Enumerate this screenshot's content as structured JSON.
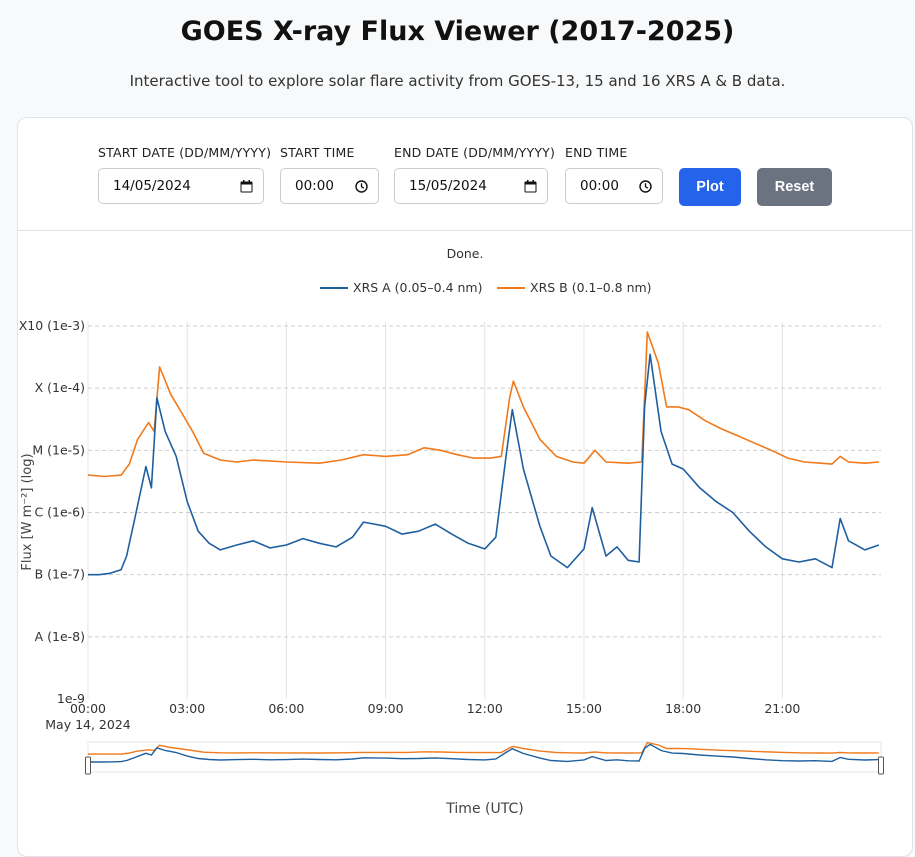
{
  "page": {
    "title": "GOES X-ray Flux Viewer (2017-2025)",
    "subtitle": "Interactive tool to explore solar flare activity from GOES-13, 15 and 16 XRS A & B data."
  },
  "controls": {
    "start_date_label": "START DATE (DD/MM/YYYY)",
    "start_date_value": "14/05/2024",
    "start_time_label": "START TIME",
    "start_time_value": "00:00",
    "end_date_label": "END DATE (DD/MM/YYYY)",
    "end_date_value": "15/05/2024",
    "end_time_label": "END TIME",
    "end_time_value": "00:00",
    "plot_label": "Plot",
    "reset_label": "Reset",
    "icons": {
      "date": "calendar-icon",
      "time": "clock-icon"
    }
  },
  "status": "Done.",
  "chart_data": {
    "type": "line",
    "title": "",
    "xlabel": "Time (UTC)",
    "ylabel": "Flux [W m⁻²] (log)",
    "yscale": "log",
    "ylim": [
      1e-09,
      0.001
    ],
    "y_ticks": [
      {
        "value": 0.001,
        "label": "X10 (1e-3)"
      },
      {
        "value": 0.0001,
        "label": "X (1e-4)"
      },
      {
        "value": 1e-05,
        "label": "M (1e-5)"
      },
      {
        "value": 1e-06,
        "label": "C (1e-6)"
      },
      {
        "value": 1e-07,
        "label": "B (1e-7)"
      },
      {
        "value": 1e-08,
        "label": "A (1e-8)"
      },
      {
        "value": 1e-09,
        "label": "1e-9"
      }
    ],
    "xlim": [
      "2024-05-14 00:00",
      "2024-05-14 23:59"
    ],
    "x_ticks": [
      {
        "value": "2024-05-14 00:00",
        "label": "00:00",
        "sublabel": "May 14, 2024"
      },
      {
        "value": "2024-05-14 03:00",
        "label": "03:00"
      },
      {
        "value": "2024-05-14 06:00",
        "label": "06:00"
      },
      {
        "value": "2024-05-14 09:00",
        "label": "09:00"
      },
      {
        "value": "2024-05-14 12:00",
        "label": "12:00"
      },
      {
        "value": "2024-05-14 15:00",
        "label": "15:00"
      },
      {
        "value": "2024-05-14 18:00",
        "label": "18:00"
      },
      {
        "value": "2024-05-14 21:00",
        "label": "21:00"
      }
    ],
    "grid": true,
    "legend": "top-center",
    "range_slider": true,
    "series": [
      {
        "name": "XRS A (0.05–0.4 nm)",
        "color": "#1f5fa0",
        "points": [
          [
            "2024-05-14 00:00",
            1e-07
          ],
          [
            "2024-05-14 00:20",
            1e-07
          ],
          [
            "2024-05-14 00:40",
            1.05e-07
          ],
          [
            "2024-05-14 01:00",
            1.2e-07
          ],
          [
            "2024-05-14 01:10",
            2e-07
          ],
          [
            "2024-05-14 01:25",
            8e-07
          ],
          [
            "2024-05-14 01:45",
            5.5e-06
          ],
          [
            "2024-05-14 01:55",
            2.5e-06
          ],
          [
            "2024-05-14 02:05",
            7e-05
          ],
          [
            "2024-05-14 02:20",
            2e-05
          ],
          [
            "2024-05-14 02:40",
            8e-06
          ],
          [
            "2024-05-14 03:00",
            1.5e-06
          ],
          [
            "2024-05-14 03:20",
            5e-07
          ],
          [
            "2024-05-14 03:40",
            3.2e-07
          ],
          [
            "2024-05-14 04:00",
            2.5e-07
          ],
          [
            "2024-05-14 04:30",
            3e-07
          ],
          [
            "2024-05-14 05:00",
            3.5e-07
          ],
          [
            "2024-05-14 05:30",
            2.7e-07
          ],
          [
            "2024-05-14 06:00",
            3e-07
          ],
          [
            "2024-05-14 06:30",
            3.8e-07
          ],
          [
            "2024-05-14 07:00",
            3.2e-07
          ],
          [
            "2024-05-14 07:30",
            2.8e-07
          ],
          [
            "2024-05-14 08:00",
            4e-07
          ],
          [
            "2024-05-14 08:20",
            7e-07
          ],
          [
            "2024-05-14 09:00",
            6e-07
          ],
          [
            "2024-05-14 09:30",
            4.5e-07
          ],
          [
            "2024-05-14 10:00",
            5e-07
          ],
          [
            "2024-05-14 10:30",
            6.5e-07
          ],
          [
            "2024-05-14 11:00",
            4.5e-07
          ],
          [
            "2024-05-14 11:30",
            3.2e-07
          ],
          [
            "2024-05-14 12:00",
            2.6e-07
          ],
          [
            "2024-05-14 12:20",
            4e-07
          ],
          [
            "2024-05-14 12:40",
            1e-05
          ],
          [
            "2024-05-14 12:50",
            4.5e-05
          ],
          [
            "2024-05-14 13:10",
            5e-06
          ],
          [
            "2024-05-14 13:40",
            6e-07
          ],
          [
            "2024-05-14 14:00",
            2e-07
          ],
          [
            "2024-05-14 14:30",
            1.3e-07
          ],
          [
            "2024-05-14 15:00",
            2.6e-07
          ],
          [
            "2024-05-14 15:15",
            1.2e-06
          ],
          [
            "2024-05-14 15:40",
            2e-07
          ],
          [
            "2024-05-14 16:00",
            2.8e-07
          ],
          [
            "2024-05-14 16:20",
            1.7e-07
          ],
          [
            "2024-05-14 16:40",
            1.6e-07
          ],
          [
            "2024-05-14 16:50",
            5e-05
          ],
          [
            "2024-05-14 17:00",
            0.00035
          ],
          [
            "2024-05-14 17:20",
            2e-05
          ],
          [
            "2024-05-14 17:40",
            6e-06
          ],
          [
            "2024-05-14 18:00",
            5e-06
          ],
          [
            "2024-05-14 18:30",
            2.5e-06
          ],
          [
            "2024-05-14 19:00",
            1.5e-06
          ],
          [
            "2024-05-14 19:30",
            1e-06
          ],
          [
            "2024-05-14 20:00",
            5e-07
          ],
          [
            "2024-05-14 20:30",
            2.8e-07
          ],
          [
            "2024-05-14 21:00",
            1.8e-07
          ],
          [
            "2024-05-14 21:30",
            1.6e-07
          ],
          [
            "2024-05-14 22:00",
            1.8e-07
          ],
          [
            "2024-05-14 22:30",
            1.3e-07
          ],
          [
            "2024-05-14 22:45",
            8e-07
          ],
          [
            "2024-05-14 23:00",
            3.5e-07
          ],
          [
            "2024-05-14 23:30",
            2.5e-07
          ],
          [
            "2024-05-14 23:55",
            3e-07
          ]
        ]
      },
      {
        "name": "XRS B (0.1–0.8 nm)",
        "color": "#f07a1c",
        "points": [
          [
            "2024-05-14 00:00",
            4e-06
          ],
          [
            "2024-05-14 00:30",
            3.8e-06
          ],
          [
            "2024-05-14 01:00",
            4e-06
          ],
          [
            "2024-05-14 01:15",
            6e-06
          ],
          [
            "2024-05-14 01:30",
            1.5e-05
          ],
          [
            "2024-05-14 01:50",
            2.8e-05
          ],
          [
            "2024-05-14 02:00",
            2e-05
          ],
          [
            "2024-05-14 02:10",
            0.00022
          ],
          [
            "2024-05-14 02:30",
            8e-05
          ],
          [
            "2024-05-14 02:50",
            4e-05
          ],
          [
            "2024-05-14 03:10",
            2e-05
          ],
          [
            "2024-05-14 03:30",
            9e-06
          ],
          [
            "2024-05-14 04:00",
            7e-06
          ],
          [
            "2024-05-14 04:30",
            6.5e-06
          ],
          [
            "2024-05-14 05:00",
            7e-06
          ],
          [
            "2024-05-14 06:00",
            6.5e-06
          ],
          [
            "2024-05-14 07:00",
            6.2e-06
          ],
          [
            "2024-05-14 07:40",
            7e-06
          ],
          [
            "2024-05-14 08:20",
            8.5e-06
          ],
          [
            "2024-05-14 09:00",
            8e-06
          ],
          [
            "2024-05-14 09:40",
            8.5e-06
          ],
          [
            "2024-05-14 10:10",
            1.1e-05
          ],
          [
            "2024-05-14 10:40",
            1e-05
          ],
          [
            "2024-05-14 11:10",
            8.5e-06
          ],
          [
            "2024-05-14 11:40",
            7.5e-06
          ],
          [
            "2024-05-14 12:10",
            7.5e-06
          ],
          [
            "2024-05-14 12:30",
            8e-06
          ],
          [
            "2024-05-14 12:45",
            7e-05
          ],
          [
            "2024-05-14 12:52",
            0.00013
          ],
          [
            "2024-05-14 13:10",
            5e-05
          ],
          [
            "2024-05-14 13:40",
            1.5e-05
          ],
          [
            "2024-05-14 14:10",
            8e-06
          ],
          [
            "2024-05-14 14:40",
            6.5e-06
          ],
          [
            "2024-05-14 15:00",
            6.2e-06
          ],
          [
            "2024-05-14 15:20",
            1e-05
          ],
          [
            "2024-05-14 15:40",
            6.5e-06
          ],
          [
            "2024-05-14 16:20",
            6.2e-06
          ],
          [
            "2024-05-14 16:45",
            6.5e-06
          ],
          [
            "2024-05-14 16:55",
            0.0008
          ],
          [
            "2024-05-14 17:15",
            0.00025
          ],
          [
            "2024-05-14 17:30",
            5e-05
          ],
          [
            "2024-05-14 17:50",
            5e-05
          ],
          [
            "2024-05-14 18:10",
            4.5e-05
          ],
          [
            "2024-05-14 18:40",
            3e-05
          ],
          [
            "2024-05-14 19:10",
            2.2e-05
          ],
          [
            "2024-05-14 19:40",
            1.7e-05
          ],
          [
            "2024-05-14 20:10",
            1.3e-05
          ],
          [
            "2024-05-14 20:40",
            1e-05
          ],
          [
            "2024-05-14 21:10",
            7.5e-06
          ],
          [
            "2024-05-14 21:40",
            6.5e-06
          ],
          [
            "2024-05-14 22:10",
            6.2e-06
          ],
          [
            "2024-05-14 22:30",
            6e-06
          ],
          [
            "2024-05-14 22:45",
            8e-06
          ],
          [
            "2024-05-14 23:00",
            6.5e-06
          ],
          [
            "2024-05-14 23:30",
            6.2e-06
          ],
          [
            "2024-05-14 23:55",
            6.5e-06
          ]
        ]
      }
    ]
  }
}
